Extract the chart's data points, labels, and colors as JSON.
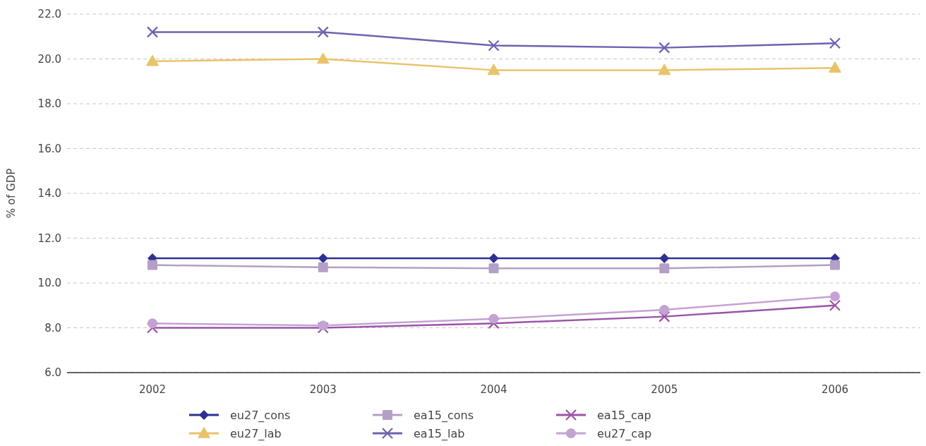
{
  "chart_data": {
    "type": "line",
    "ylabel": "% of GDP",
    "categories": [
      "2002",
      "2003",
      "2004",
      "2005",
      "2006"
    ],
    "series": [
      {
        "name": "eu27_cons",
        "color": "#2e3192",
        "marker": "diamond",
        "values": [
          11.1,
          11.1,
          11.1,
          11.1,
          11.1
        ]
      },
      {
        "name": "ea15_cons",
        "color": "#b49fc6",
        "marker": "square",
        "values": [
          10.8,
          10.7,
          10.65,
          10.65,
          10.8
        ]
      },
      {
        "name": "ea15_cap",
        "color": "#9b54a8",
        "marker": "cross",
        "values": [
          8.0,
          8.0,
          8.2,
          8.5,
          9.0
        ]
      },
      {
        "name": "eu27_lab",
        "color": "#e8c36b",
        "marker": "triangle",
        "values": [
          19.9,
          20.0,
          19.5,
          19.5,
          19.6
        ]
      },
      {
        "name": "ea15_lab",
        "color": "#6c63b0",
        "marker": "cross",
        "values": [
          21.2,
          21.2,
          20.6,
          20.5,
          20.7
        ]
      },
      {
        "name": "eu27_cap",
        "color": "#c4a3d2",
        "marker": "circle",
        "values": [
          8.2,
          8.1,
          8.4,
          8.8,
          9.4
        ]
      }
    ],
    "ylim": [
      6,
      22
    ],
    "yticks": [
      {
        "value": 6,
        "label": "6.0"
      },
      {
        "value": 8,
        "label": "8.0"
      },
      {
        "value": 10,
        "label": "10.0"
      },
      {
        "value": 12,
        "label": "12.0"
      },
      {
        "value": 14,
        "label": "14.0"
      },
      {
        "value": 16,
        "label": "16.0"
      },
      {
        "value": 18,
        "label": "18.0"
      },
      {
        "value": 20,
        "label": "20.0"
      },
      {
        "value": 22,
        "label": "22.0"
      }
    ],
    "grid": "y",
    "legend": "bottom",
    "line_style": "solid"
  }
}
